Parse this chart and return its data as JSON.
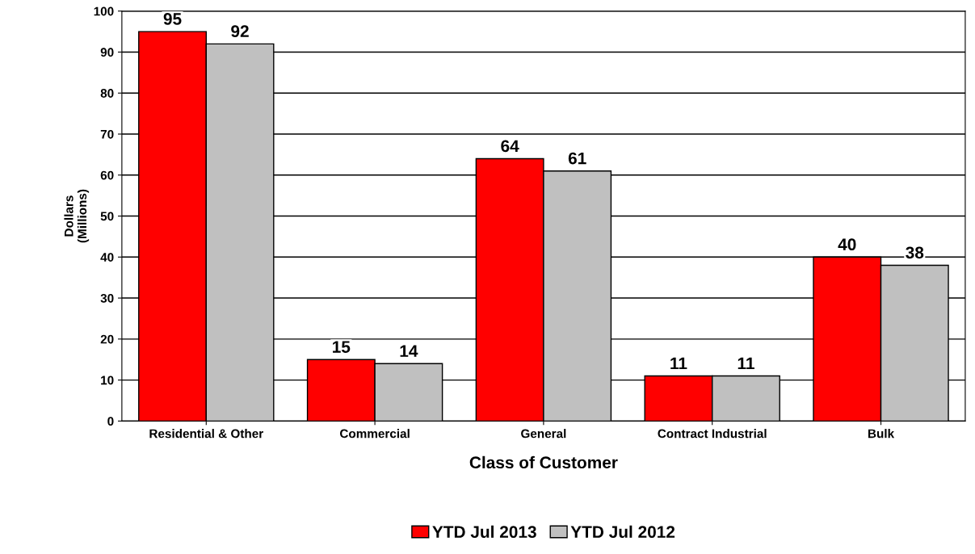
{
  "chart_data": {
    "type": "bar",
    "xlabel": "Class of Customer",
    "ylabel": "Dollars\n(Millions)",
    "categories": [
      "Residential & Other",
      "Commercial",
      "General",
      "Contract Industrial",
      "Bulk"
    ],
    "series": [
      {
        "name": "YTD Jul 2013",
        "color": "#ff0000",
        "values": [
          95,
          15,
          64,
          11,
          40
        ]
      },
      {
        "name": "YTD Jul 2012",
        "color": "#c0c0c0",
        "values": [
          92,
          14,
          61,
          11,
          38
        ]
      }
    ],
    "ylim": [
      0,
      100
    ],
    "yticks": [
      0,
      10,
      20,
      30,
      40,
      50,
      60,
      70,
      80,
      90,
      100
    ],
    "grid": "y",
    "legend": "bottom",
    "data_labels": true
  }
}
